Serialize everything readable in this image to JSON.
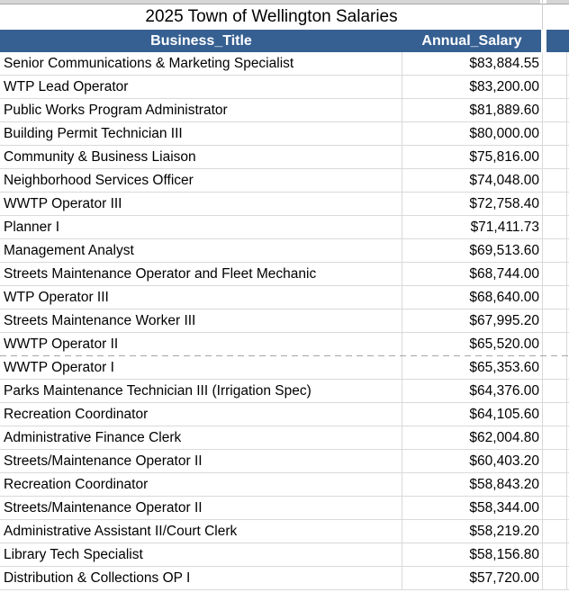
{
  "title": "2025 Town of Wellington Salaries",
  "columns": {
    "business_title": "Business_Title",
    "annual_salary": "Annual_Salary"
  },
  "rows": [
    {
      "title": "Senior Communications & Marketing Specialist",
      "salary": "$83,884.55"
    },
    {
      "title": "WTP Lead Operator",
      "salary": "$83,200.00"
    },
    {
      "title": "Public Works Program Administrator",
      "salary": "$81,889.60"
    },
    {
      "title": "Building Permit Technician III",
      "salary": "$80,000.00"
    },
    {
      "title": "Community & Business Liaison",
      "salary": "$75,816.00"
    },
    {
      "title": "Neighborhood Services Officer",
      "salary": "$74,048.00"
    },
    {
      "title": "WWTP Operator III",
      "salary": "$72,758.40"
    },
    {
      "title": "Planner I",
      "salary": "$71,411.73"
    },
    {
      "title": "Management Analyst",
      "salary": "$69,513.60"
    },
    {
      "title": "Streets Maintenance Operator and Fleet Mechanic",
      "salary": "$68,744.00"
    },
    {
      "title": "WTP Operator III",
      "salary": "$68,640.00"
    },
    {
      "title": "Streets Maintenance Worker III",
      "salary": "$67,995.20"
    },
    {
      "title": "WWTP Operator II",
      "salary": "$65,520.00"
    },
    {
      "title": "WWTP Operator I",
      "salary": "$65,353.60"
    },
    {
      "title": "Parks Maintenance Technician III (Irrigation Spec)",
      "salary": "$64,376.00"
    },
    {
      "title": "Recreation Coordinator",
      "salary": "$64,105.60"
    },
    {
      "title": "Administrative Finance Clerk",
      "salary": "$62,004.80"
    },
    {
      "title": "Streets/Maintenance Operator II",
      "salary": "$60,403.20"
    },
    {
      "title": "Recreation Coordinator",
      "salary": "$58,843.20"
    },
    {
      "title": "Streets/Maintenance Operator II",
      "salary": "$58,344.00"
    },
    {
      "title": "Administrative Assistant II/Court Clerk",
      "salary": "$58,219.20"
    },
    {
      "title": "Library Tech Specialist",
      "salary": "$58,156.80"
    },
    {
      "title": "Distribution & Collections OP I",
      "salary": "$57,720.00"
    }
  ],
  "page_break_after_row": 13,
  "colors": {
    "header_bg": "#366092",
    "header_text": "#ffffff",
    "gridline": "#d9d9d9",
    "page_break_line": "#a6a6a6",
    "top_strip": "#d6d6d6"
  }
}
